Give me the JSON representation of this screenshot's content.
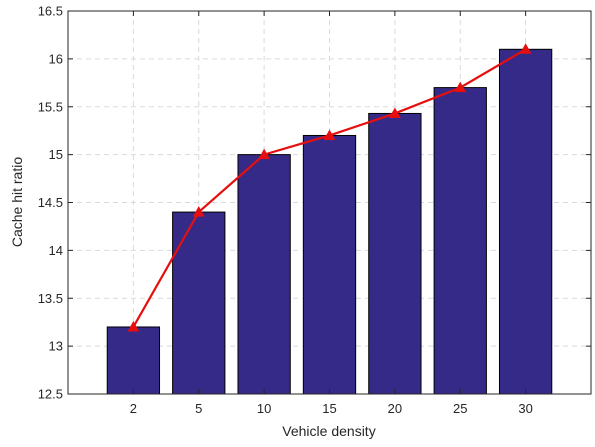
{
  "chart_data": {
    "type": "bar",
    "categories": [
      "2",
      "5",
      "10",
      "15",
      "20",
      "25",
      "30"
    ],
    "values": [
      13.2,
      14.4,
      15.0,
      15.2,
      15.43,
      15.7,
      16.1
    ],
    "line_values": [
      13.2,
      14.4,
      15.0,
      15.2,
      15.43,
      15.7,
      16.1
    ],
    "xlabel": "Vehicle density",
    "ylabel": "Cache hit ratio",
    "ylim": [
      12.5,
      16.5
    ],
    "yticks": [
      12.5,
      13,
      13.5,
      14,
      14.5,
      15,
      15.5,
      16,
      16.5
    ],
    "ytick_labels": [
      "12.5",
      "13",
      "13.5",
      "14",
      "14.5",
      "15",
      "15.5",
      "16",
      "16.5"
    ],
    "grid": true,
    "legend": false,
    "colors": {
      "bar": "#352a87",
      "line": "#e60f0f",
      "marker": "#e60f0f"
    }
  }
}
